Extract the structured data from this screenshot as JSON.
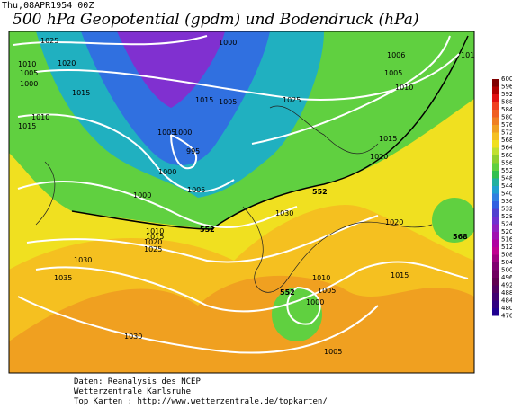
{
  "header": {
    "date": "Thu,08APR1954 00Z",
    "title": "500 hPa Geopotential (gpdm) und Bodendruck (hPa)"
  },
  "map": {
    "isobar_labels": [
      1025,
      1000,
      1010,
      1020,
      1005,
      1000,
      1015,
      1010,
      1015,
      1015,
      1005,
      1025,
      1005,
      1000,
      995,
      1000,
      1005,
      1000,
      1006,
      1005,
      1010,
      1015,
      1020,
      1030,
      1020,
      1010,
      1015,
      1020,
      1025,
      1030,
      1035,
      1015,
      1010,
      1005,
      1000,
      1030,
      1005,
      101
    ],
    "height_labels": [
      552,
      552,
      568,
      552
    ]
  },
  "legend": {
    "ticks": [
      600,
      596,
      592,
      588,
      584,
      580,
      576,
      572,
      568,
      564,
      560,
      556,
      552,
      548,
      544,
      540,
      536,
      532,
      528,
      524,
      520,
      516,
      512,
      508,
      504,
      500,
      496,
      492,
      488,
      484,
      480,
      476
    ]
  },
  "footer": {
    "lines": [
      "Daten: Reanalysis des NCEP",
      "Wetterzentrale Karlsruhe",
      "Top Karten :  http://www.wetterzentrale.de/topkarten/"
    ]
  }
}
